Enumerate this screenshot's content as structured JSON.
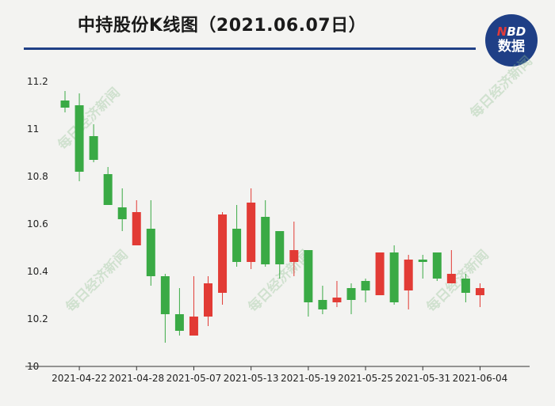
{
  "title": "中持股份K线图（2021.06.07日）",
  "logo": {
    "top_accent": "N",
    "top_rest": "BD",
    "bottom": "数据"
  },
  "watermark": "每日经济新闻",
  "colors": {
    "up": "#e23b35",
    "down": "#3aaa45",
    "title_rule": "#1f3f86",
    "background": "#f3f3f1"
  },
  "chart_data": {
    "type": "candlestick",
    "title": "中持股份K线图（2021.06.07日）",
    "ylim": [
      10,
      11.2
    ],
    "yticks": [
      "10",
      "10.2",
      "10.4",
      "10.6",
      "10.8",
      "11",
      "11.2"
    ],
    "xtick_labels": [
      {
        "index": 1,
        "label": "2021-04-22"
      },
      {
        "index": 5,
        "label": "2021-04-28"
      },
      {
        "index": 9,
        "label": "2021-05-07"
      },
      {
        "index": 13,
        "label": "2021-05-13"
      },
      {
        "index": 17,
        "label": "2021-05-19"
      },
      {
        "index": 21,
        "label": "2021-05-25"
      },
      {
        "index": 25,
        "label": "2021-05-31"
      },
      {
        "index": 29,
        "label": "2021-06-04"
      }
    ],
    "candles": [
      {
        "open": 11.12,
        "close": 11.09,
        "high": 11.16,
        "low": 11.07
      },
      {
        "open": 11.1,
        "close": 10.82,
        "high": 11.15,
        "low": 10.78
      },
      {
        "open": 10.97,
        "close": 10.87,
        "high": 11.02,
        "low": 10.86
      },
      {
        "open": 10.81,
        "close": 10.68,
        "high": 10.84,
        "low": 10.68
      },
      {
        "open": 10.67,
        "close": 10.62,
        "high": 10.75,
        "low": 10.57
      },
      {
        "open": 10.51,
        "close": 10.65,
        "high": 10.7,
        "low": 10.51
      },
      {
        "open": 10.58,
        "close": 10.38,
        "high": 10.7,
        "low": 10.34
      },
      {
        "open": 10.38,
        "close": 10.22,
        "high": 10.39,
        "low": 10.1
      },
      {
        "open": 10.22,
        "close": 10.15,
        "high": 10.33,
        "low": 10.13
      },
      {
        "open": 10.13,
        "close": 10.21,
        "high": 10.38,
        "low": 10.13
      },
      {
        "open": 10.21,
        "close": 10.35,
        "high": 10.38,
        "low": 10.17
      },
      {
        "open": 10.31,
        "close": 10.64,
        "high": 10.65,
        "low": 10.26
      },
      {
        "open": 10.58,
        "close": 10.44,
        "high": 10.68,
        "low": 10.42
      },
      {
        "open": 10.44,
        "close": 10.69,
        "high": 10.75,
        "low": 10.41
      },
      {
        "open": 10.63,
        "close": 10.43,
        "high": 10.7,
        "low": 10.42
      },
      {
        "open": 10.57,
        "close": 10.43,
        "high": 10.57,
        "low": 10.37
      },
      {
        "open": 10.44,
        "close": 10.49,
        "high": 10.61,
        "low": 10.38
      },
      {
        "open": 10.49,
        "close": 10.27,
        "high": 10.49,
        "low": 10.21
      },
      {
        "open": 10.28,
        "close": 10.24,
        "high": 10.34,
        "low": 10.22
      },
      {
        "open": 10.27,
        "close": 10.29,
        "high": 10.36,
        "low": 10.25
      },
      {
        "open": 10.33,
        "close": 10.28,
        "high": 10.35,
        "low": 10.22
      },
      {
        "open": 10.36,
        "close": 10.32,
        "high": 10.37,
        "low": 10.27
      },
      {
        "open": 10.3,
        "close": 10.48,
        "high": 10.48,
        "low": 10.3
      },
      {
        "open": 10.48,
        "close": 10.27,
        "high": 10.51,
        "low": 10.26
      },
      {
        "open": 10.32,
        "close": 10.45,
        "high": 10.47,
        "low": 10.24
      },
      {
        "open": 10.45,
        "close": 10.44,
        "high": 10.47,
        "low": 10.37
      },
      {
        "open": 10.48,
        "close": 10.37,
        "high": 10.48,
        "low": 10.36
      },
      {
        "open": 10.35,
        "close": 10.39,
        "high": 10.49,
        "low": 10.35
      },
      {
        "open": 10.37,
        "close": 10.31,
        "high": 10.39,
        "low": 10.27
      },
      {
        "open": 10.3,
        "close": 10.33,
        "high": 10.35,
        "low": 10.25
      }
    ]
  }
}
